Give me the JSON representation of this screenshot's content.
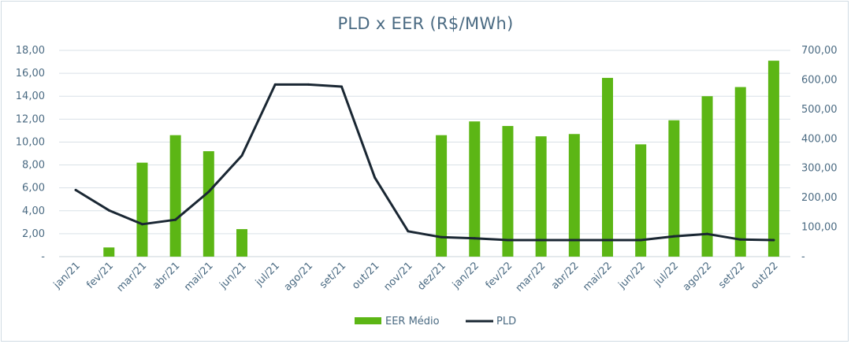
{
  "chart_data": {
    "type": "bar",
    "title": "PLD x EER (R$/MWh)",
    "categories": [
      "jan/21",
      "fev/21",
      "mar/21",
      "abr/21",
      "mai/21",
      "jun/21",
      "jul/21",
      "ago/21",
      "set/21",
      "out/21",
      "nov/21",
      "dez/21",
      "jan/22",
      "fev/22",
      "mar/22",
      "abr/22",
      "mai/22",
      "jun/22",
      "jul/22",
      "ago/22",
      "set/22",
      "out/22"
    ],
    "series": [
      {
        "name": "EER Médio",
        "type": "bar",
        "axis": "left",
        "color": "#5cb615",
        "values": [
          0,
          0.8,
          8.2,
          10.6,
          9.2,
          2.4,
          0,
          0,
          0,
          0,
          0,
          10.6,
          11.8,
          11.4,
          10.5,
          10.7,
          15.6,
          9.8,
          11.9,
          14.0,
          14.8,
          17.1
        ]
      },
      {
        "name": "PLD",
        "type": "line",
        "axis": "right",
        "color": "#1a2733",
        "values": [
          226,
          157,
          110,
          125,
          220,
          343,
          584,
          584,
          577,
          268,
          86,
          66,
          62,
          56,
          56,
          56,
          56,
          56,
          69,
          77,
          58,
          56
        ]
      }
    ],
    "y_left": {
      "ticks": [
        "-",
        "2,00",
        "4,00",
        "6,00",
        "8,00",
        "10,00",
        "12,00",
        "14,00",
        "16,00",
        "18,00"
      ],
      "range": [
        0,
        18
      ]
    },
    "y_right": {
      "ticks": [
        "-",
        "100,00",
        "200,00",
        "300,00",
        "400,00",
        "500,00",
        "600,00",
        "700,00"
      ],
      "range": [
        0,
        700
      ]
    },
    "grid": true,
    "legend_position": "bottom"
  }
}
